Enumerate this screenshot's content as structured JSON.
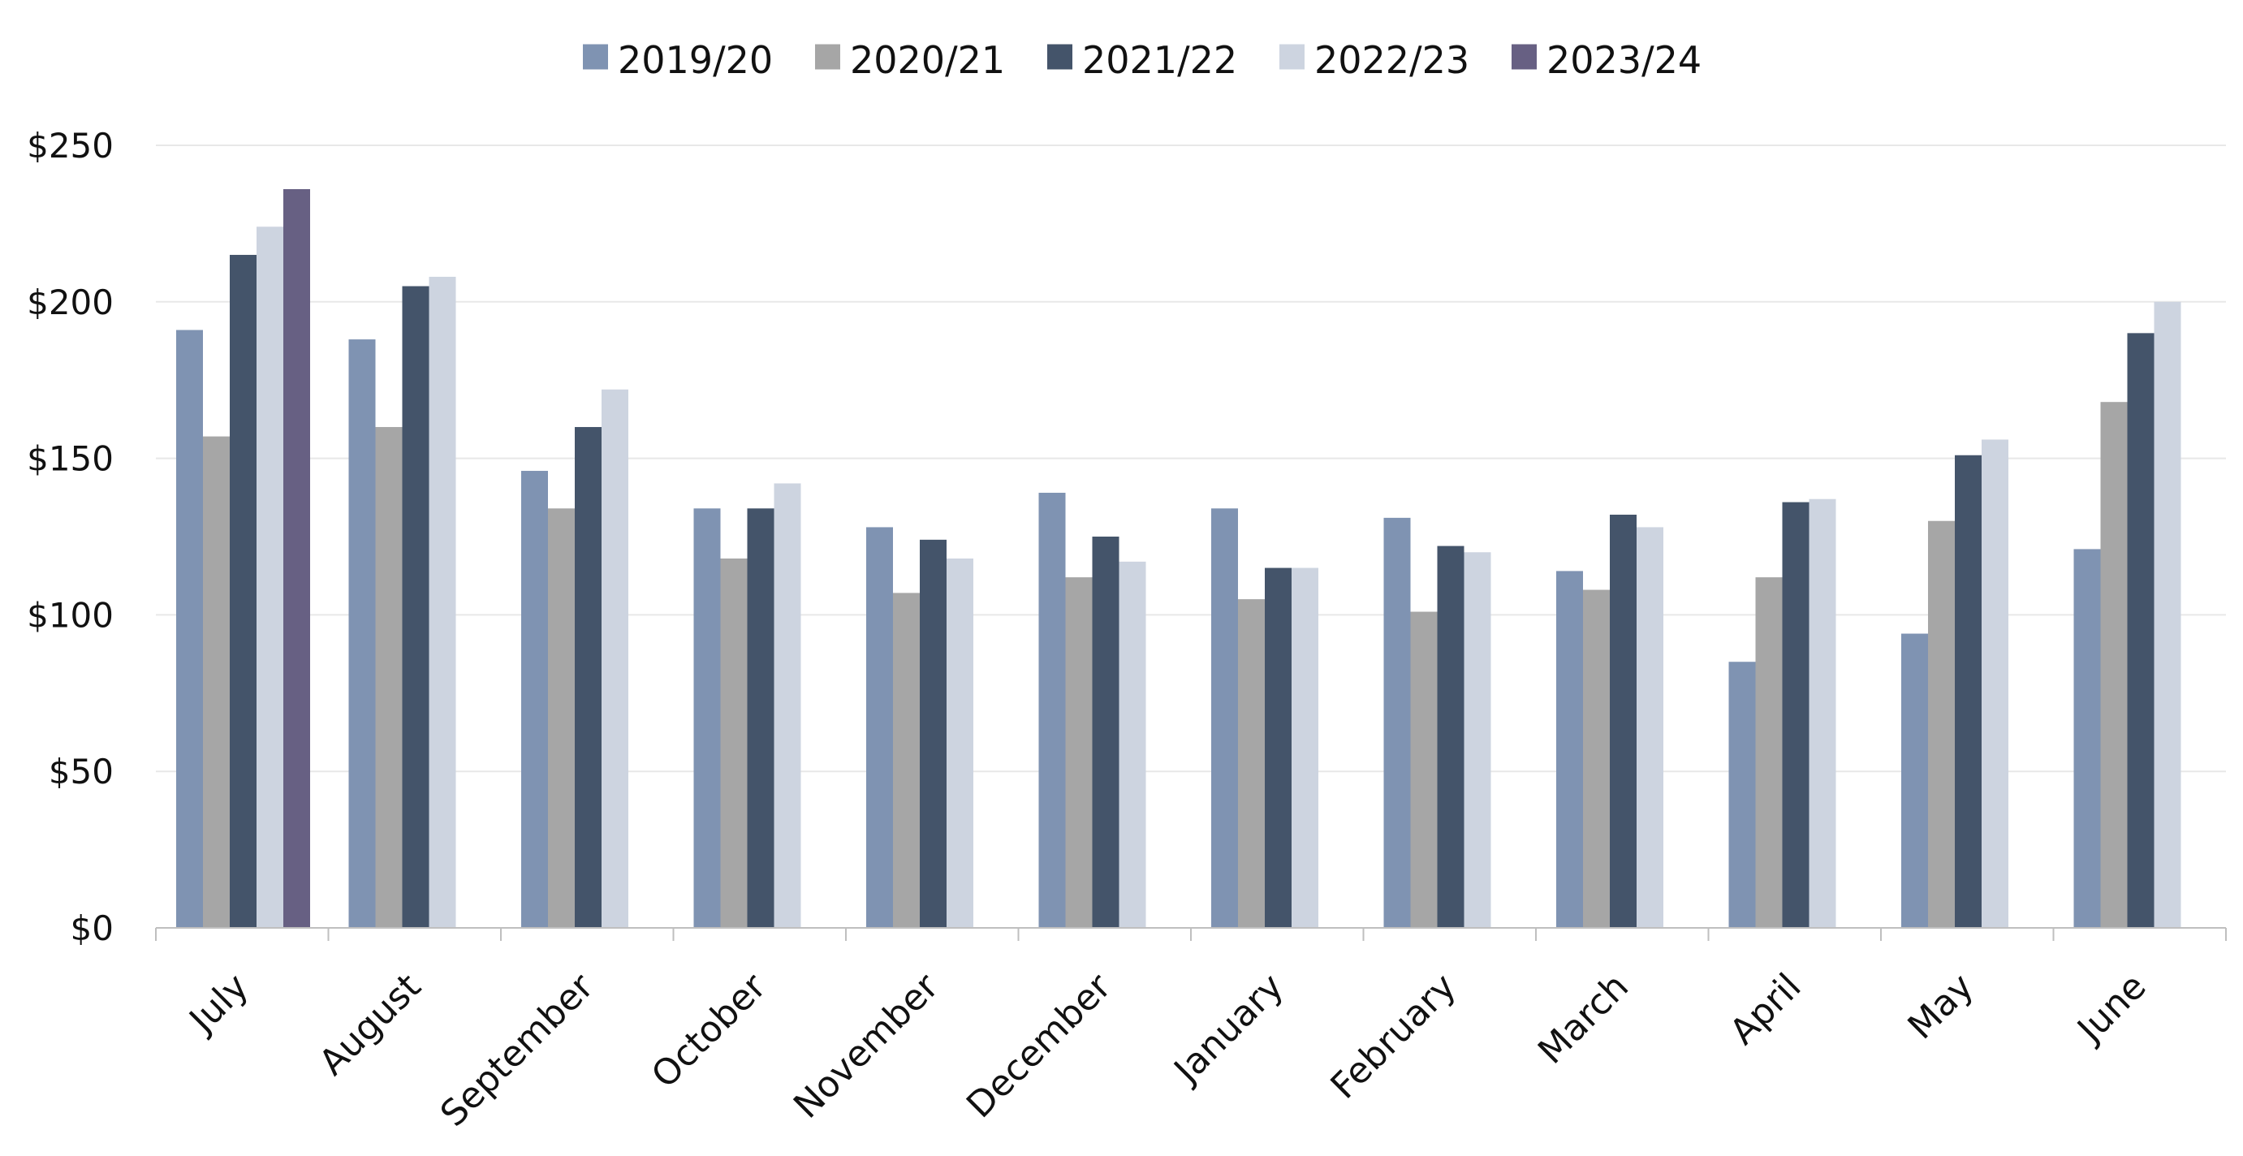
{
  "chart_data": {
    "type": "bar",
    "title": "",
    "xlabel": "",
    "ylabel": "",
    "ylim": [
      0,
      250
    ],
    "y_ticks": [
      "$0",
      "$50",
      "$100",
      "$150",
      "$200",
      "$250"
    ],
    "y_tick_values": [
      0,
      50,
      100,
      150,
      200,
      250
    ],
    "grid": true,
    "legend_position": "top-center",
    "categories": [
      "July",
      "August",
      "September",
      "October",
      "November",
      "December",
      "January",
      "February",
      "March",
      "April",
      "May",
      "June"
    ],
    "series": [
      {
        "name": "2019/20",
        "color": "#7f93b2",
        "values": [
          191,
          188,
          146,
          134,
          128,
          139,
          134,
          131,
          114,
          85,
          94,
          121
        ]
      },
      {
        "name": "2020/21",
        "color": "#a6a6a6",
        "values": [
          157,
          160,
          134,
          118,
          107,
          112,
          105,
          101,
          108,
          112,
          130,
          168
        ]
      },
      {
        "name": "2021/22",
        "color": "#44546a",
        "values": [
          215,
          205,
          160,
          134,
          124,
          125,
          115,
          122,
          132,
          136,
          151,
          190
        ]
      },
      {
        "name": "2022/23",
        "color": "#cdd4e0",
        "values": [
          224,
          208,
          172,
          142,
          118,
          117,
          115,
          120,
          128,
          137,
          156,
          200
        ]
      },
      {
        "name": "2023/24",
        "color": "#676083",
        "values": [
          236,
          null,
          null,
          null,
          null,
          null,
          null,
          null,
          null,
          null,
          null,
          null
        ]
      }
    ]
  }
}
